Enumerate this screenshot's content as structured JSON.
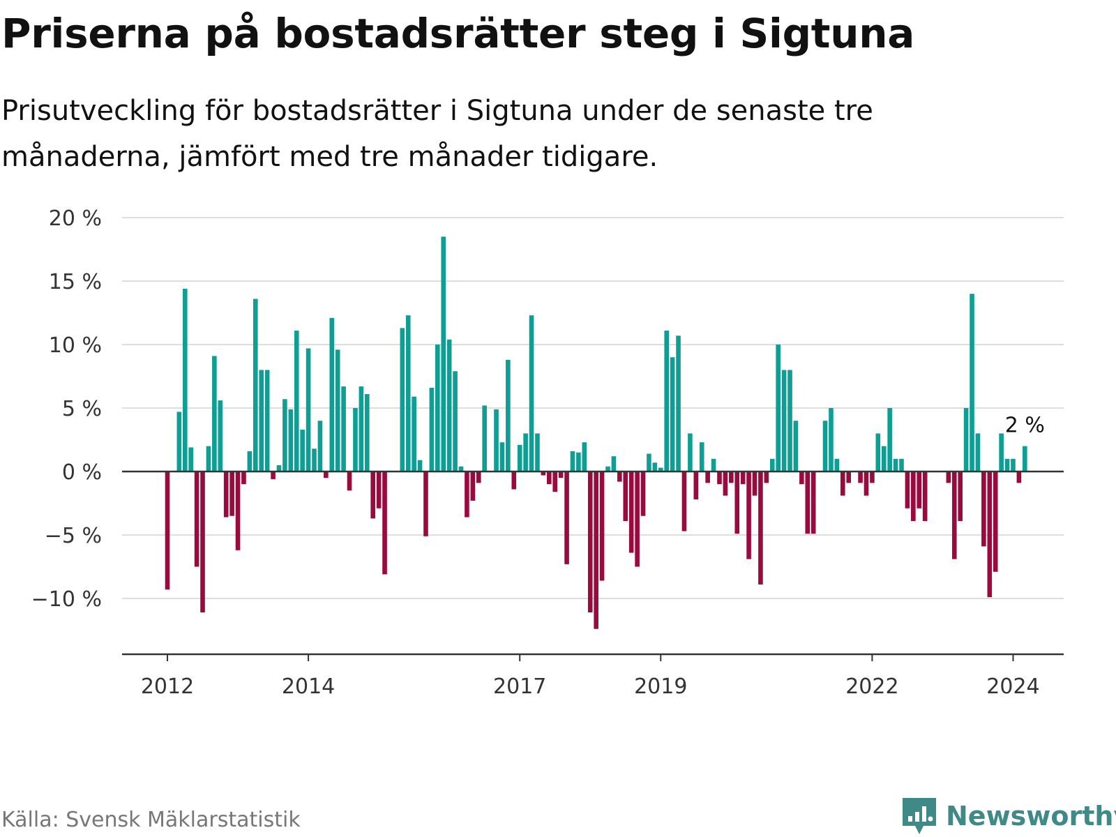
{
  "title": "Priserna på bostadsrätter steg i Sigtuna",
  "subtitle": "Prisutveckling för bostadsrätter i Sigtuna under de senaste tre månaderna, jämfört med tre månader tidigare.",
  "source": "Källa: Svensk Mäklarstatistik",
  "brand": "Newsworthy",
  "colors": {
    "positive": "#0f9e94",
    "negative": "#990a3d",
    "grid": "#dddddd",
    "axis": "#333333",
    "brand": "#3f8a86"
  },
  "chart_data": {
    "type": "bar",
    "title": "Priserna på bostadsrätter steg i Sigtuna",
    "xlabel": "",
    "ylabel": "",
    "unit": "%",
    "ylim": [
      -14,
      20
    ],
    "yticks": [
      20,
      15,
      10,
      5,
      0,
      -5,
      -10
    ],
    "ytick_labels": [
      "20 %",
      "15 %",
      "10 %",
      "5 %",
      "0 %",
      "−5 %",
      "−10 %"
    ],
    "xticks": [
      {
        "label": "2012",
        "index": 0
      },
      {
        "label": "2014",
        "index": 24
      },
      {
        "label": "2017",
        "index": 60
      },
      {
        "label": "2019",
        "index": 84
      },
      {
        "label": "2022",
        "index": 120
      },
      {
        "label": "2024",
        "index": 144
      }
    ],
    "first_period": "2012-01",
    "series": [
      {
        "name": "Prisutveckling",
        "values": [
          -9.3,
          0,
          4.7,
          14.4,
          1.9,
          -7.5,
          -11.1,
          2.0,
          9.1,
          5.6,
          -3.6,
          -3.5,
          -6.2,
          -1.0,
          1.6,
          13.6,
          8.0,
          8.0,
          -0.6,
          0.5,
          5.7,
          4.9,
          11.1,
          3.3,
          9.7,
          1.8,
          4.0,
          -0.5,
          12.1,
          9.6,
          6.7,
          -1.5,
          5.0,
          6.7,
          6.1,
          -3.7,
          -2.9,
          -8.1,
          0,
          0,
          11.3,
          12.3,
          5.9,
          0.9,
          -5.1,
          6.6,
          10.0,
          18.5,
          10.4,
          7.9,
          0.4,
          -3.6,
          -2.3,
          -0.9,
          5.2,
          0,
          4.9,
          2.3,
          8.8,
          -1.4,
          2.1,
          3.0,
          12.3,
          3.0,
          -0.3,
          -1.0,
          -1.6,
          -0.5,
          -7.3,
          1.6,
          1.5,
          2.3,
          -11.1,
          -12.4,
          -8.6,
          0.4,
          1.2,
          -0.8,
          -3.9,
          -6.4,
          -7.5,
          -3.5,
          1.4,
          0.7,
          0.3,
          11.1,
          9.0,
          10.7,
          -4.7,
          3.0,
          -2.2,
          2.3,
          -0.9,
          1.0,
          -1.0,
          -1.9,
          -0.9,
          -4.9,
          -1.0,
          -6.9,
          -1.9,
          -8.9,
          -0.9,
          1.0,
          10.0,
          8.0,
          8.0,
          4.0,
          -1.0,
          -4.9,
          -4.9,
          0,
          4.0,
          5.0,
          1.0,
          -1.9,
          -0.9,
          0,
          -0.9,
          -1.9,
          -0.9,
          3.0,
          2.0,
          5.0,
          1.0,
          1.0,
          -2.9,
          -3.9,
          -2.9,
          -3.9,
          0,
          0,
          0,
          -0.9,
          -6.9,
          -3.9,
          5.0,
          14.0,
          3.0,
          -5.9,
          -9.9,
          -7.9,
          3.0,
          1.0,
          1.0,
          -0.9,
          2.0
        ]
      }
    ],
    "annotation": {
      "index": 146,
      "text": "2 %"
    }
  }
}
